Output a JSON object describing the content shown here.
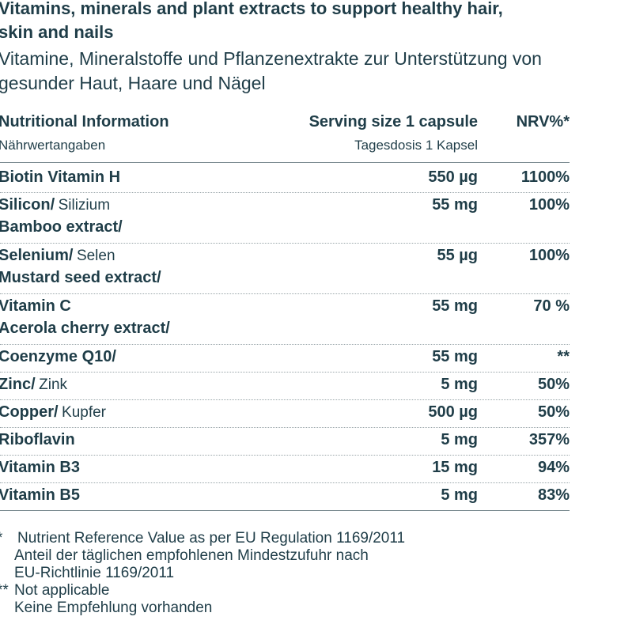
{
  "header": {
    "title": "Vitamins, minerals and plant extracts to support healthy hair, skin and nails",
    "subtitle": "Vitamine, Mineralstoffe und Pflanzenextrakte zur Unterstützung von gesunder Haut, Haare und Nägel"
  },
  "table": {
    "columns": [
      {
        "label": "Nutritional Information",
        "sublabel": "Nährwertangaben"
      },
      {
        "label": "Serving size 1 capsule",
        "sublabel": "Tagesdosis 1 Kapsel"
      },
      {
        "label": "NRV%*"
      }
    ],
    "rows": [
      {
        "name": "Biotin Vitamin H",
        "amount": "550 µg",
        "nrv": "1100%"
      },
      {
        "name": "Silicon/",
        "name_de": "Silizium",
        "source": "Bamboo extract/",
        "amount": "55 mg",
        "nrv": "100%"
      },
      {
        "name": "Selenium/",
        "name_de": "Selen",
        "source": "Mustard seed extract/",
        "amount": "55 µg",
        "nrv": "100%"
      },
      {
        "name": "Vitamin C",
        "source": "Acerola cherry extract/",
        "amount": "55 mg",
        "nrv": "70 %"
      },
      {
        "name": "Coenzyme Q10/",
        "amount": "55 mg",
        "nrv": "**"
      },
      {
        "name": "Zinc/",
        "name_de": "Zink",
        "amount": "5 mg",
        "nrv": "50%"
      },
      {
        "name": "Copper/",
        "name_de": "Kupfer",
        "amount": "500 µg",
        "nrv": "50%"
      },
      {
        "name": "Riboflavin",
        "amount": "5 mg",
        "nrv": "357%"
      },
      {
        "name": "Vitamin B3",
        "amount": "15 mg",
        "nrv": "94%"
      },
      {
        "name": "Vitamin B5",
        "amount": "5 mg",
        "nrv": "83%"
      }
    ]
  },
  "footnotes": [
    {
      "marker": "*",
      "lines": [
        "Nutrient Reference Value as per EU Regulation 1169/2011",
        "Anteil der täglichen empfohlenen Mindestzufuhr nach",
        "EU-Richtlinie 1169/2011"
      ]
    },
    {
      "marker": "**",
      "lines": [
        "Not applicable",
        "Keine Empfehlung vorhanden"
      ]
    }
  ]
}
